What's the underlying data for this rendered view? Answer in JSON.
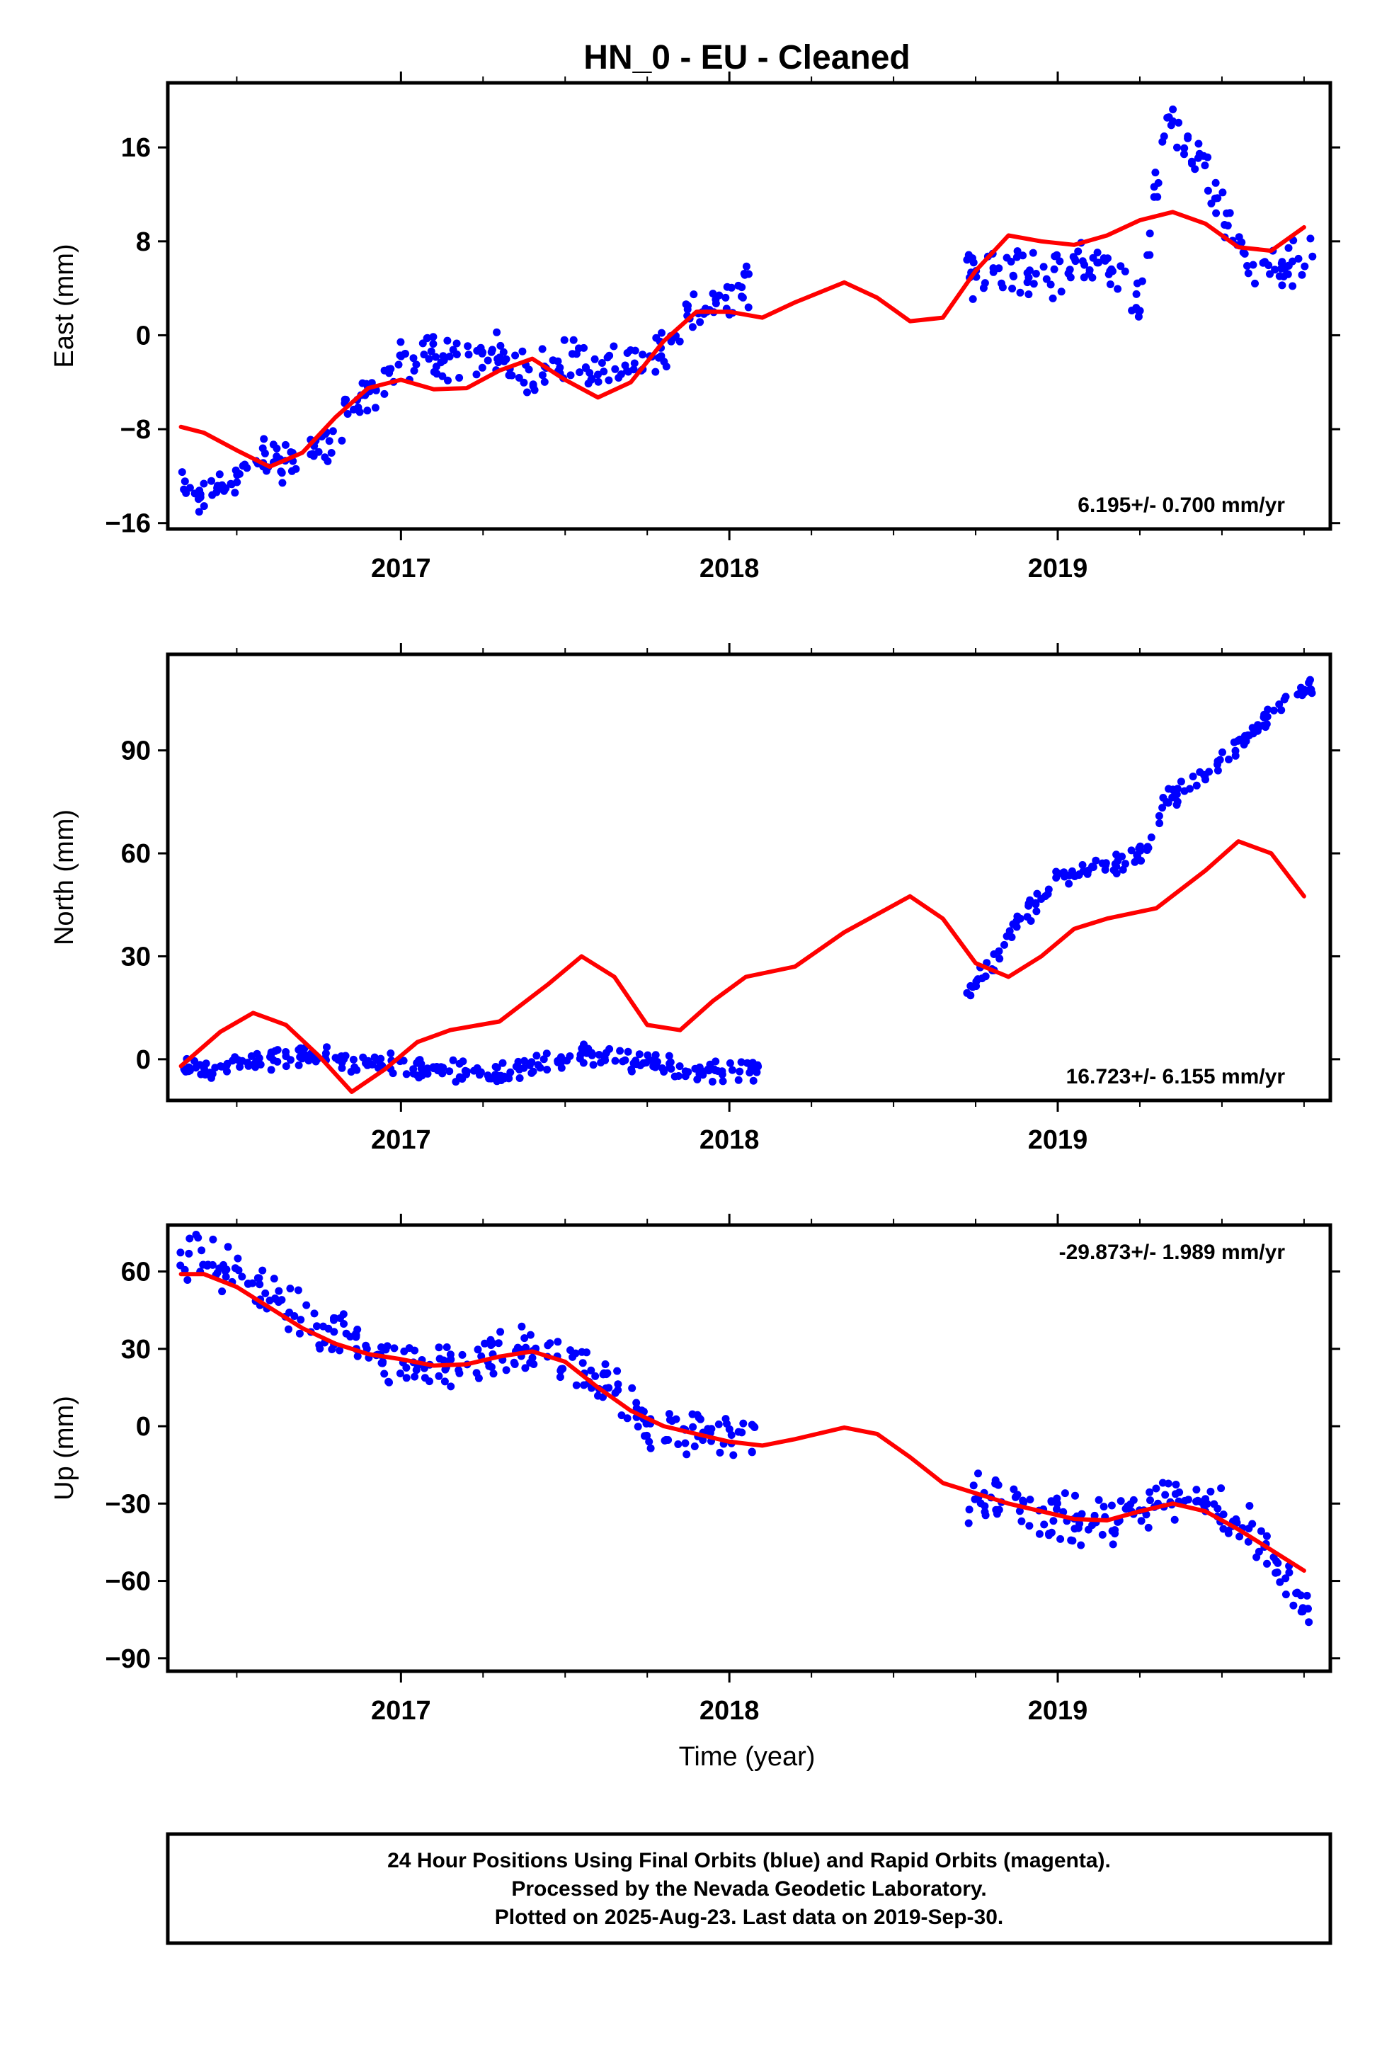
{
  "title": "HN_0  - EU - Cleaned",
  "xlabel": "Time (year)",
  "colors": {
    "data": "#0000ff",
    "fit": "#ff0000",
    "frame": "#000000"
  },
  "footer": {
    "line1": "24 Hour Positions Using Final Orbits (blue) and Rapid Orbits (magenta).",
    "line2": "Processed by the Nevada Geodetic Laboratory.",
    "line3": "Plotted on 2025-Aug-23. Last data on 2019-Sep-30."
  },
  "chart_data": [
    {
      "type": "scatter",
      "ylabel": "East (mm)",
      "rate": "6.195+/- 0.700 mm/yr",
      "xlim": [
        2016.29,
        2019.83
      ],
      "ylim": [
        -16.5,
        21.5
      ],
      "yticks": [
        -16,
        -8,
        0,
        8,
        16
      ],
      "xticks": [
        "2017",
        "2018",
        "2019"
      ],
      "observations": [
        [
          2016.32,
          -13
        ],
        [
          2016.4,
          -13.5
        ],
        [
          2016.5,
          -12
        ],
        [
          2016.6,
          -10.5
        ],
        [
          2016.7,
          -11
        ],
        [
          2016.8,
          -8
        ],
        [
          2016.9,
          -5
        ],
        [
          2017.0,
          -2
        ],
        [
          2017.1,
          -1.5
        ],
        [
          2017.2,
          -2
        ],
        [
          2017.3,
          -2
        ],
        [
          2017.4,
          -3.5
        ],
        [
          2017.5,
          -1.5
        ],
        [
          2017.6,
          -3.5
        ],
        [
          2017.7,
          -3
        ],
        [
          2017.8,
          -1
        ],
        [
          2017.9,
          2
        ],
        [
          2018.0,
          4
        ],
        [
          2018.08,
          4.5
        ],
        [
          2018.72,
          5
        ],
        [
          2018.8,
          6
        ],
        [
          2018.9,
          5
        ],
        [
          2019.0,
          5.5
        ],
        [
          2019.1,
          6
        ],
        [
          2019.2,
          5
        ],
        [
          2019.25,
          3
        ],
        [
          2019.33,
          18.5
        ],
        [
          2019.4,
          16
        ],
        [
          2019.5,
          11
        ],
        [
          2019.6,
          5
        ],
        [
          2019.7,
          6
        ],
        [
          2019.78,
          8
        ]
      ],
      "fit": [
        [
          2016.33,
          -7.8
        ],
        [
          2016.4,
          -8.3
        ],
        [
          2016.5,
          -9.8
        ],
        [
          2016.6,
          -11.2
        ],
        [
          2016.7,
          -10
        ],
        [
          2016.8,
          -7
        ],
        [
          2016.9,
          -4.5
        ],
        [
          2017.0,
          -3.8
        ],
        [
          2017.1,
          -4.6
        ],
        [
          2017.2,
          -4.5
        ],
        [
          2017.3,
          -3
        ],
        [
          2017.4,
          -2
        ],
        [
          2017.5,
          -3.8
        ],
        [
          2017.6,
          -5.3
        ],
        [
          2017.7,
          -4
        ],
        [
          2017.8,
          -0.5
        ],
        [
          2017.9,
          2
        ],
        [
          2018.0,
          2
        ],
        [
          2018.1,
          1.5
        ],
        [
          2018.2,
          2.8
        ],
        [
          2018.35,
          4.5
        ],
        [
          2018.45,
          3.2
        ],
        [
          2018.55,
          1.2
        ],
        [
          2018.65,
          1.5
        ],
        [
          2018.75,
          5.5
        ],
        [
          2018.85,
          8.5
        ],
        [
          2018.95,
          8
        ],
        [
          2019.05,
          7.7
        ],
        [
          2019.15,
          8.5
        ],
        [
          2019.25,
          9.8
        ],
        [
          2019.35,
          10.5
        ],
        [
          2019.45,
          9.5
        ],
        [
          2019.55,
          7.5
        ],
        [
          2019.65,
          7.2
        ],
        [
          2019.75,
          9.2
        ]
      ]
    },
    {
      "type": "scatter",
      "ylabel": "North (mm)",
      "rate": "16.723+/- 6.155 mm/yr",
      "xlim": [
        2016.29,
        2019.83
      ],
      "ylim": [
        -12,
        118
      ],
      "yticks": [
        0,
        30,
        60,
        90
      ],
      "xticks": [
        "2017",
        "2018",
        "2019"
      ],
      "observations": [
        [
          2016.32,
          -3
        ],
        [
          2016.5,
          -2
        ],
        [
          2016.65,
          1
        ],
        [
          2016.8,
          0
        ],
        [
          2016.95,
          -1
        ],
        [
          2017.1,
          -3
        ],
        [
          2017.3,
          -4
        ],
        [
          2017.5,
          0
        ],
        [
          2017.6,
          2
        ],
        [
          2017.8,
          -2
        ],
        [
          2018.0,
          -4
        ],
        [
          2018.1,
          -3
        ],
        [
          2018.72,
          19
        ],
        [
          2018.8,
          28
        ],
        [
          2018.9,
          42
        ],
        [
          2019.0,
          52
        ],
        [
          2019.1,
          56
        ],
        [
          2019.2,
          58
        ],
        [
          2019.27,
          60
        ],
        [
          2019.32,
          74
        ],
        [
          2019.45,
          83
        ],
        [
          2019.6,
          95
        ],
        [
          2019.7,
          107
        ],
        [
          2019.78,
          108
        ]
      ],
      "fit": [
        [
          2016.33,
          -2
        ],
        [
          2016.45,
          8
        ],
        [
          2016.55,
          13.5
        ],
        [
          2016.65,
          10
        ],
        [
          2016.75,
          1
        ],
        [
          2016.85,
          -9.5
        ],
        [
          2016.95,
          -3
        ],
        [
          2017.05,
          5
        ],
        [
          2017.15,
          8.5
        ],
        [
          2017.3,
          11
        ],
        [
          2017.45,
          22
        ],
        [
          2017.55,
          30
        ],
        [
          2017.65,
          24
        ],
        [
          2017.75,
          10
        ],
        [
          2017.85,
          8.5
        ],
        [
          2017.95,
          17
        ],
        [
          2018.05,
          24
        ],
        [
          2018.2,
          27
        ],
        [
          2018.35,
          37
        ],
        [
          2018.55,
          47.5
        ],
        [
          2018.65,
          41
        ],
        [
          2018.75,
          28
        ],
        [
          2018.85,
          24
        ],
        [
          2018.95,
          30
        ],
        [
          2019.05,
          38
        ],
        [
          2019.15,
          41
        ],
        [
          2019.3,
          44
        ],
        [
          2019.45,
          55
        ],
        [
          2019.55,
          63.5
        ],
        [
          2019.65,
          60
        ],
        [
          2019.75,
          47.5
        ]
      ]
    },
    {
      "type": "scatter",
      "ylabel": "Up (mm)",
      "rate": "-29.873+/- 1.989 mm/yr",
      "xlim": [
        2016.29,
        2019.83
      ],
      "ylim": [
        -95,
        78
      ],
      "yticks": [
        -90,
        -60,
        -30,
        0,
        30,
        60
      ],
      "xticks": [
        "2017",
        "2018",
        "2019"
      ],
      "observations": [
        [
          2016.32,
          62
        ],
        [
          2016.4,
          65
        ],
        [
          2016.5,
          58
        ],
        [
          2016.6,
          50
        ],
        [
          2016.7,
          42
        ],
        [
          2016.8,
          35
        ],
        [
          2016.9,
          30
        ],
        [
          2017.0,
          25
        ],
        [
          2017.1,
          22
        ],
        [
          2017.2,
          25
        ],
        [
          2017.3,
          28
        ],
        [
          2017.4,
          30
        ],
        [
          2017.5,
          28
        ],
        [
          2017.6,
          18
        ],
        [
          2017.7,
          8
        ],
        [
          2017.8,
          -5
        ],
        [
          2017.9,
          -2
        ],
        [
          2018.0,
          -5
        ],
        [
          2018.08,
          -3
        ],
        [
          2018.72,
          -28
        ],
        [
          2018.8,
          -28
        ],
        [
          2018.9,
          -32
        ],
        [
          2019.0,
          -35
        ],
        [
          2019.1,
          -38
        ],
        [
          2019.2,
          -35
        ],
        [
          2019.3,
          -30
        ],
        [
          2019.4,
          -28
        ],
        [
          2019.5,
          -33
        ],
        [
          2019.6,
          -42
        ],
        [
          2019.7,
          -60
        ],
        [
          2019.78,
          -75
        ]
      ],
      "fit": [
        [
          2016.33,
          59
        ],
        [
          2016.4,
          59
        ],
        [
          2016.5,
          54
        ],
        [
          2016.6,
          46
        ],
        [
          2016.7,
          38
        ],
        [
          2016.8,
          32
        ],
        [
          2016.9,
          28
        ],
        [
          2017.0,
          26
        ],
        [
          2017.1,
          23.5
        ],
        [
          2017.2,
          24
        ],
        [
          2017.3,
          27
        ],
        [
          2017.4,
          29
        ],
        [
          2017.5,
          25
        ],
        [
          2017.6,
          15
        ],
        [
          2017.7,
          6
        ],
        [
          2017.8,
          0
        ],
        [
          2017.9,
          -3
        ],
        [
          2018.0,
          -6
        ],
        [
          2018.1,
          -7.5
        ],
        [
          2018.2,
          -5
        ],
        [
          2018.35,
          -0.5
        ],
        [
          2018.45,
          -3
        ],
        [
          2018.55,
          -12
        ],
        [
          2018.65,
          -22
        ],
        [
          2018.75,
          -26
        ],
        [
          2018.85,
          -30
        ],
        [
          2018.95,
          -33
        ],
        [
          2019.05,
          -36
        ],
        [
          2019.15,
          -36.5
        ],
        [
          2019.25,
          -33
        ],
        [
          2019.35,
          -30
        ],
        [
          2019.45,
          -33
        ],
        [
          2019.55,
          -40
        ],
        [
          2019.65,
          -48
        ],
        [
          2019.75,
          -56
        ]
      ]
    }
  ]
}
